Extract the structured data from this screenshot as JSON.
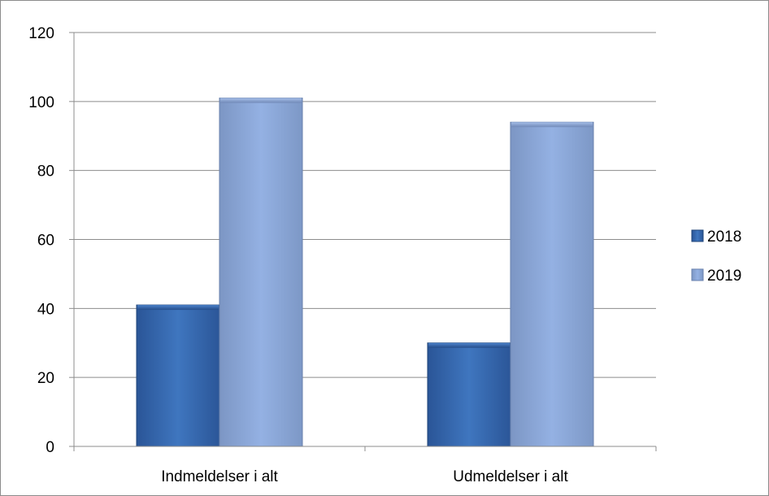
{
  "chart_data": {
    "type": "bar",
    "title": "",
    "xlabel": "",
    "ylabel": "",
    "categories": [
      "Indmeldelser i alt",
      "Udmeldelser i alt"
    ],
    "series": [
      {
        "name": "2018",
        "values": [
          41,
          30
        ],
        "color": "#3a6db1"
      },
      {
        "name": "2019",
        "values": [
          101,
          94
        ],
        "color": "#8aa9dc"
      }
    ],
    "ylim": [
      0,
      120
    ],
    "yticks": [
      0,
      20,
      40,
      60,
      80,
      100,
      120
    ],
    "grid": true,
    "legend_position": "right"
  }
}
